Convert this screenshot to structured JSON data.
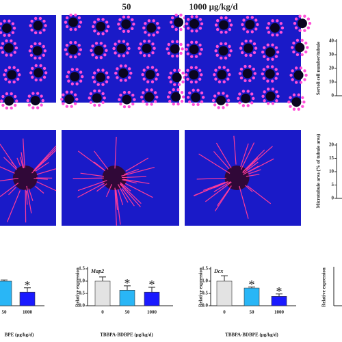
{
  "column_labels": [
    "50",
    "1000 μg/kg/d"
  ],
  "chart_data": [
    {
      "type": "axis",
      "y_label": "Sertoli cell number/tubule",
      "ylim": [
        0,
        40
      ],
      "yticks": [
        0,
        10,
        20,
        30,
        40
      ]
    },
    {
      "type": "axis",
      "y_label": "Microtubule area (% of tubule area)",
      "ylim": [
        0,
        20
      ],
      "yticks": [
        0,
        5,
        10,
        15,
        20
      ]
    },
    {
      "type": "bar",
      "x_label": "BPE (μg/kg/d)",
      "categories": [
        "50",
        "1000"
      ],
      "values": [
        1.0,
        0.55
      ],
      "errors": [
        0.05,
        0.18
      ],
      "colors": [
        "#29b6f6",
        "#1a1aff"
      ],
      "asterisks": [
        null,
        "*"
      ],
      "ylim": [
        0,
        1.5
      ]
    },
    {
      "type": "bar",
      "title": "Map2",
      "y_label": "Relative expression",
      "x_label": "TBBPA-BDBPE (μg/kg/d)",
      "categories": [
        "0",
        "50",
        "1000"
      ],
      "values": [
        1.0,
        0.63,
        0.55
      ],
      "errors": [
        0.17,
        0.18,
        0.2
      ],
      "colors": [
        "#e3e3e3",
        "#29b6f6",
        "#1a1aff"
      ],
      "asterisks": [
        null,
        "*",
        "*"
      ],
      "ylim": [
        0,
        1.5
      ],
      "yticks": [
        {
          "value": 0,
          "label": "0.0"
        },
        {
          "value": 0.5,
          "label": "0.5"
        },
        {
          "value": 1,
          "label": "1.0"
        },
        {
          "value": 1.5,
          "label": "1.5"
        }
      ]
    },
    {
      "type": "bar",
      "title": "Dcx",
      "y_label": "Relative expression",
      "x_label": "TBBPA-BDBPE (μg/kg/d)",
      "categories": [
        "0",
        "50",
        "1000"
      ],
      "values": [
        1.0,
        0.72,
        0.38
      ],
      "errors": [
        0.22,
        0.04,
        0.1
      ],
      "colors": [
        "#e3e3e3",
        "#29b6f6",
        "#1a1aff"
      ],
      "asterisks": [
        null,
        "*",
        "*"
      ],
      "ylim": [
        0,
        1.5
      ],
      "yticks": [
        {
          "value": 0,
          "label": "0.0"
        },
        {
          "value": 0.5,
          "label": "0.5"
        },
        {
          "value": 1,
          "label": "1.0"
        },
        {
          "value": 1.5,
          "label": "1.5"
        }
      ]
    },
    {
      "type": "axis",
      "y_label": "Relative expression"
    }
  ]
}
